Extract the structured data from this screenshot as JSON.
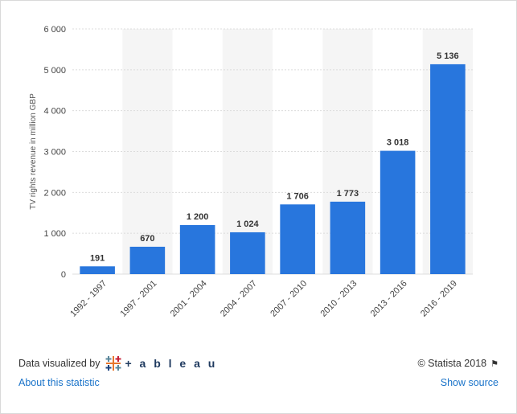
{
  "chart_data": {
    "type": "bar",
    "categories": [
      "1992 - 1997",
      "1997 - 2001",
      "2001 - 2004",
      "2004 - 2007",
      "2007 - 2010",
      "2010 - 2013",
      "2013 - 2016",
      "2016 - 2019"
    ],
    "values": [
      191,
      670,
      1200,
      1024,
      1706,
      1773,
      3018,
      5136
    ],
    "value_labels": [
      "191",
      "670",
      "1 200",
      "1 024",
      "1 706",
      "1 773",
      "3 018",
      "5 136"
    ],
    "title": "",
    "xlabel": "",
    "ylabel": "TV rights revenue in million GBP",
    "ylim": [
      0,
      6000
    ],
    "yticks": [
      0,
      1000,
      2000,
      3000,
      4000,
      5000,
      6000
    ],
    "ytick_labels": [
      "0",
      "1 000",
      "2 000",
      "3 000",
      "4 000",
      "5 000",
      "6 000"
    ],
    "grid": true,
    "bar_color": "#2876dd"
  },
  "footer": {
    "visualized_by": "Data visualized by",
    "tableau_word": "+ a b l e a u",
    "copyright": "© Statista 2018",
    "about_link": "About this statistic",
    "source_link": "Show source"
  },
  "colors": {
    "bar": "#2876dd",
    "band": "#f5f5f5",
    "grid": "#dcdcdc",
    "link": "#1a73c9",
    "text": "#333333"
  }
}
